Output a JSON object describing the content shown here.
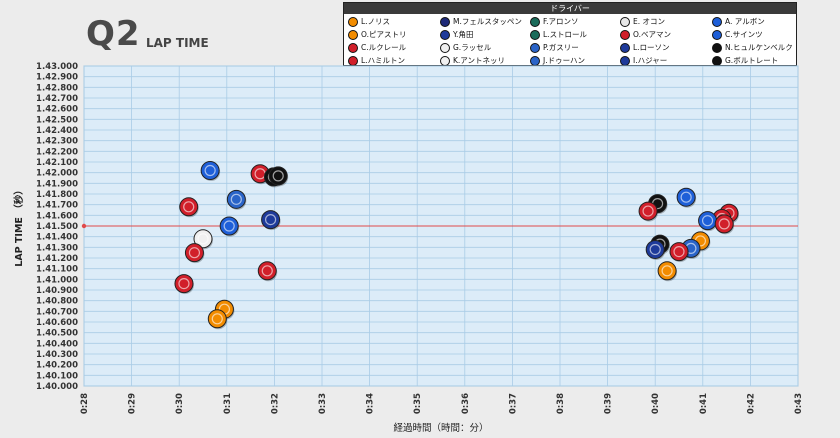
{
  "header": {
    "title": "Q2",
    "subtitle": "LAP TIME"
  },
  "legend": {
    "title": "ドライバー",
    "items": [
      {
        "label": "L.ノリス",
        "color": "#f28c00"
      },
      {
        "label": "M.フェルスタッペン",
        "color": "#1e2a78"
      },
      {
        "label": "F.アロンソ",
        "color": "#1b6b5a"
      },
      {
        "label": "E. オコン",
        "color": "#e8e8e8"
      },
      {
        "label": "A. アルボン",
        "color": "#1e5fd8"
      },
      {
        "label": "O.ピアストリ",
        "color": "#f28c00"
      },
      {
        "label": "Y.角田",
        "color": "#1e3a9a"
      },
      {
        "label": "L.ストロール",
        "color": "#1b6b5a"
      },
      {
        "label": "O.ベアマン",
        "color": "#d11f2a"
      },
      {
        "label": "C.サインツ",
        "color": "#1e5fd8"
      },
      {
        "label": "C.ルクレール",
        "color": "#d11f2a"
      },
      {
        "label": "G.ラッセル",
        "color": "#f0f0f0"
      },
      {
        "label": "P.ガスリー",
        "color": "#2a64c8"
      },
      {
        "label": "L.ローソン",
        "color": "#1e3a9a"
      },
      {
        "label": "N.ヒュルケンベルク",
        "color": "#111111"
      },
      {
        "label": "L.ハミルトン",
        "color": "#d11f2a"
      },
      {
        "label": "K.アントネッリ",
        "color": "#f0f0f0"
      },
      {
        "label": "J.ドゥーハン",
        "color": "#2a64c8"
      },
      {
        "label": "I.ハジャー",
        "color": "#1e3a9a"
      },
      {
        "label": "G.ボルトレート",
        "color": "#111111"
      }
    ]
  },
  "chart_data": {
    "type": "scatter",
    "xlabel": "経過時間（時間：分）",
    "ylabel": "LAP TIME （秒）",
    "xlim": [
      28,
      43
    ],
    "ylim": [
      1.4,
      1.43
    ],
    "x_ticks": [
      "0:28",
      "0:29",
      "0:30",
      "0:31",
      "0:32",
      "0:33",
      "0:34",
      "0:35",
      "0:36",
      "0:37",
      "0:38",
      "0:39",
      "0:40",
      "0:41",
      "0:42",
      "0:43"
    ],
    "y_ticks": [
      "1.40.000",
      "1.40.100",
      "1.40.200",
      "1.40.300",
      "1.40.400",
      "1.40.500",
      "1.40.600",
      "1.40.700",
      "1.40.800",
      "1.40.900",
      "1.41.000",
      "1.41.100",
      "1.41.200",
      "1.41.300",
      "1.41.400",
      "1.41.500",
      "1.41.600",
      "1.41.700",
      "1.41.800",
      "1.41.900",
      "1.42.000",
      "1.42.100",
      "1.42.200",
      "1.42.300",
      "1.42.400",
      "1.42.500",
      "1.42.600",
      "1.42.700",
      "1.42.800",
      "1.42.900",
      "1.43.000"
    ],
    "reference_line": 1.415,
    "grid": true,
    "legend_position": "top-right",
    "points": [
      {
        "x": 30.65,
        "y": 1.4202,
        "color": "#1e5fd8"
      },
      {
        "x": 31.7,
        "y": 1.4199,
        "color": "#d11f2a"
      },
      {
        "x": 31.98,
        "y": 1.4196,
        "color": "#111111"
      },
      {
        "x": 32.08,
        "y": 1.4197,
        "color": "#111111"
      },
      {
        "x": 31.2,
        "y": 1.4175,
        "color": "#2a64c8"
      },
      {
        "x": 30.2,
        "y": 1.4168,
        "color": "#d11f2a"
      },
      {
        "x": 31.92,
        "y": 1.4156,
        "color": "#1e3a9a"
      },
      {
        "x": 31.05,
        "y": 1.415,
        "color": "#1e5fd8"
      },
      {
        "x": 30.5,
        "y": 1.4138,
        "color": "#f0f0f0"
      },
      {
        "x": 30.32,
        "y": 1.4125,
        "color": "#d11f2a"
      },
      {
        "x": 31.85,
        "y": 1.4108,
        "color": "#d11f2a"
      },
      {
        "x": 30.1,
        "y": 1.4096,
        "color": "#d11f2a"
      },
      {
        "x": 30.95,
        "y": 1.4072,
        "color": "#f28c00"
      },
      {
        "x": 30.8,
        "y": 1.4063,
        "color": "#f28c00"
      },
      {
        "x": 40.65,
        "y": 1.4177,
        "color": "#1e5fd8"
      },
      {
        "x": 40.05,
        "y": 1.4171,
        "color": "#111111"
      },
      {
        "x": 39.85,
        "y": 1.4164,
        "color": "#d11f2a"
      },
      {
        "x": 41.55,
        "y": 1.4162,
        "color": "#d11f2a"
      },
      {
        "x": 41.4,
        "y": 1.4157,
        "color": "#d11f2a"
      },
      {
        "x": 41.1,
        "y": 1.4155,
        "color": "#1e5fd8"
      },
      {
        "x": 41.45,
        "y": 1.4152,
        "color": "#d11f2a"
      },
      {
        "x": 40.1,
        "y": 1.4133,
        "color": "#111111"
      },
      {
        "x": 40.95,
        "y": 1.4136,
        "color": "#f28c00"
      },
      {
        "x": 40.75,
        "y": 1.4129,
        "color": "#2a64c8"
      },
      {
        "x": 40.0,
        "y": 1.4128,
        "color": "#1e3a9a"
      },
      {
        "x": 40.5,
        "y": 1.4126,
        "color": "#d11f2a"
      },
      {
        "x": 40.25,
        "y": 1.4108,
        "color": "#f28c00"
      }
    ]
  }
}
